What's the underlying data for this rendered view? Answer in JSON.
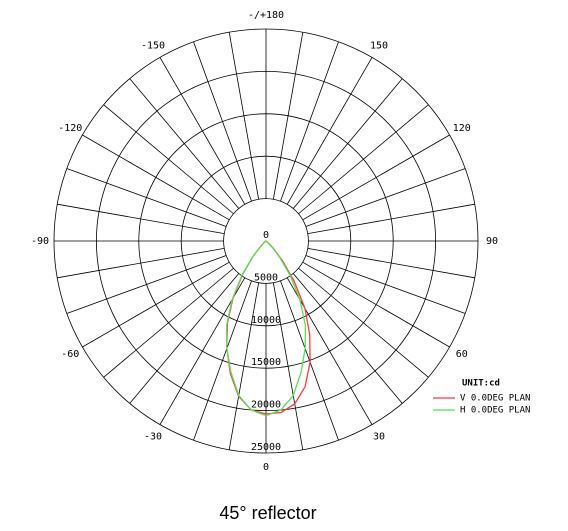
{
  "chart_data": {
    "type": "polar",
    "caption": "45° reflector",
    "rlim": [
      0,
      25000
    ],
    "rticks": [
      0,
      5000,
      10000,
      15000,
      20000,
      25000
    ],
    "thetaticks": [
      {
        "value": 180,
        "label": "-/+180"
      },
      150,
      120,
      90,
      60,
      30,
      0,
      -30,
      -60,
      -90,
      -120,
      -150
    ],
    "legend_title": "UNIT:cd",
    "theta": [
      -90,
      -85,
      -80,
      -75,
      -70,
      -65,
      -60,
      -55,
      -50,
      -45,
      -40,
      -35,
      -30,
      -25,
      -20,
      -15,
      -10,
      -5,
      0,
      5,
      10,
      15,
      20,
      25,
      30,
      35,
      40,
      45,
      50,
      55,
      60,
      65,
      70,
      75,
      80,
      85,
      90
    ],
    "series": [
      {
        "name": "V 0.0DEG PLAN",
        "color": "#ff3b3b",
        "values": [
          0,
          0,
          0,
          0,
          0,
          0,
          0,
          100,
          300,
          900,
          2400,
          4800,
          7800,
          10800,
          13500,
          16200,
          18600,
          20000,
          20400,
          20300,
          19500,
          17800,
          15200,
          12200,
          9200,
          5800,
          3000,
          1200,
          400,
          100,
          0,
          0,
          0,
          0,
          0,
          0,
          0
        ]
      },
      {
        "name": "H 0.0DEG PLAN",
        "color": "#55e055",
        "values": [
          0,
          0,
          0,
          0,
          0,
          0,
          0,
          100,
          300,
          1000,
          2500,
          5000,
          8000,
          11000,
          13500,
          16000,
          18500,
          20000,
          20600,
          20000,
          18500,
          16000,
          13500,
          11000,
          8000,
          5000,
          2500,
          1000,
          300,
          100,
          0,
          0,
          0,
          0,
          0,
          0,
          0
        ]
      }
    ]
  }
}
